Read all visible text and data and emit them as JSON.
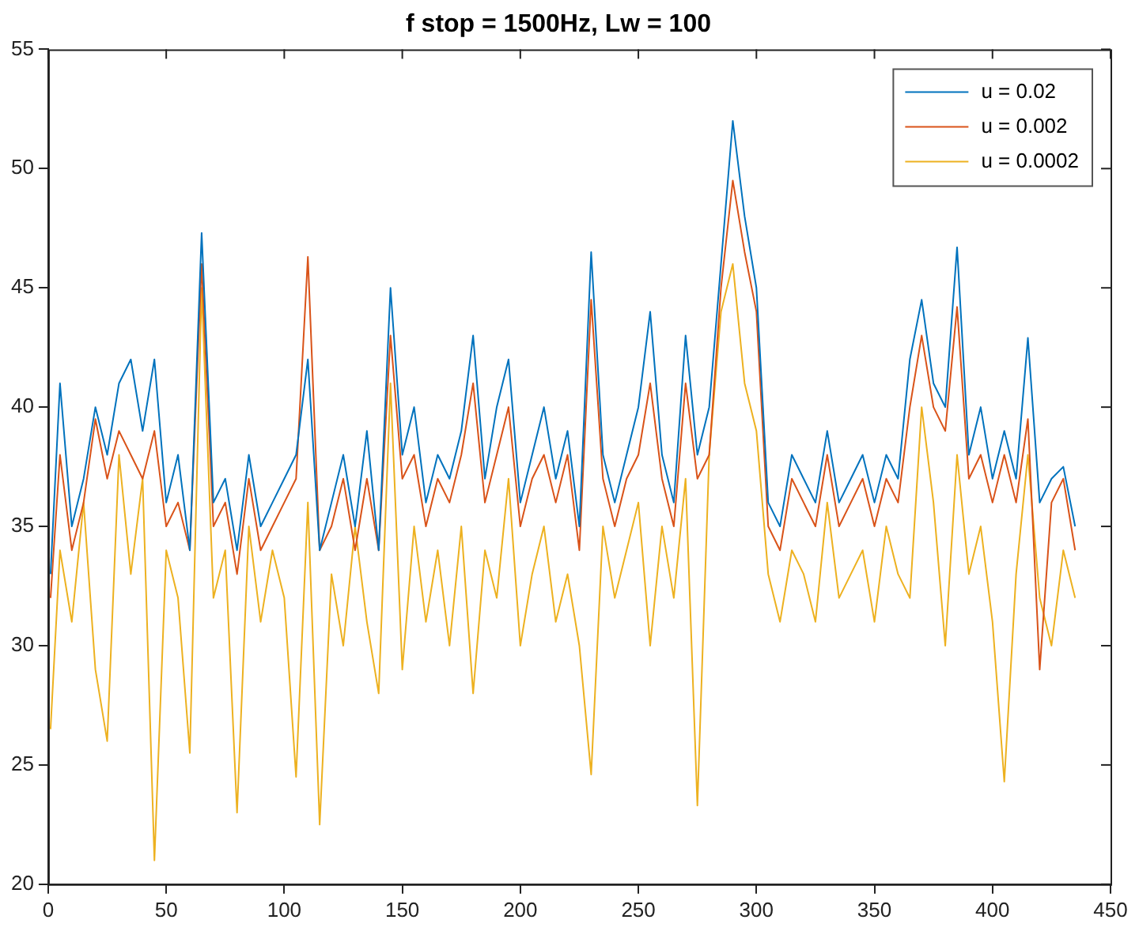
{
  "chart_data": {
    "type": "line",
    "title": "f stop = 1500Hz, Lw = 100",
    "x": [
      1,
      5,
      10,
      15,
      20,
      25,
      30,
      35,
      40,
      45,
      50,
      55,
      60,
      65,
      70,
      75,
      80,
      85,
      90,
      95,
      100,
      105,
      110,
      115,
      120,
      125,
      130,
      135,
      140,
      145,
      150,
      155,
      160,
      165,
      170,
      175,
      180,
      185,
      190,
      195,
      200,
      205,
      210,
      215,
      220,
      225,
      230,
      235,
      240,
      245,
      250,
      255,
      260,
      265,
      270,
      275,
      280,
      285,
      290,
      295,
      300,
      305,
      310,
      315,
      320,
      325,
      330,
      335,
      340,
      345,
      350,
      355,
      360,
      365,
      370,
      375,
      380,
      385,
      390,
      395,
      400,
      405,
      410,
      415,
      420,
      425,
      430,
      435
    ],
    "series": [
      {
        "name": "u = 0.02",
        "color": "#0072bd",
        "values": [
          33,
          41,
          35,
          37,
          40,
          38,
          41,
          42,
          39,
          42,
          36,
          38,
          34,
          47.3,
          36,
          37,
          34,
          38,
          35,
          36,
          37,
          38,
          42,
          34,
          36,
          38,
          35,
          39,
          34,
          45,
          38,
          40,
          36,
          38,
          37,
          39,
          43,
          37,
          40,
          42,
          36,
          38,
          40,
          37,
          39,
          35,
          46.5,
          38,
          36,
          38,
          40,
          44,
          38,
          36,
          43,
          38,
          40,
          46,
          52,
          48,
          45,
          36,
          35,
          38,
          37,
          36,
          39,
          36,
          37,
          38,
          36,
          38,
          37,
          42,
          44.5,
          41,
          40,
          46.7,
          38,
          40,
          37,
          39,
          37,
          42.9,
          36,
          37,
          37.5,
          35
        ]
      },
      {
        "name": "u = 0.002",
        "color": "#d95319",
        "values": [
          32,
          38,
          34,
          36,
          39.5,
          37,
          39,
          38,
          37,
          39,
          35,
          36,
          34,
          46,
          35,
          36,
          33,
          37,
          34,
          35,
          36,
          37,
          46.3,
          34,
          35,
          37,
          34,
          37,
          34,
          43,
          37,
          38,
          35,
          37,
          36,
          38,
          41,
          36,
          38,
          40,
          35,
          37,
          38,
          36,
          38,
          34,
          44.5,
          37,
          35,
          37,
          38,
          41,
          37,
          35,
          41,
          37,
          38,
          45,
          49.5,
          46.5,
          44,
          35,
          34,
          37,
          36,
          35,
          38,
          35,
          36,
          37,
          35,
          37,
          36,
          40,
          43,
          40,
          39,
          44.2,
          37,
          38,
          36,
          38,
          36,
          39.5,
          29,
          36,
          37,
          34
        ]
      },
      {
        "name": "u = 0.0002",
        "color": "#edb120",
        "values": [
          26.5,
          34,
          31,
          36,
          29,
          26,
          38,
          33,
          37,
          21,
          34,
          32,
          25.5,
          45,
          32,
          34,
          23,
          35,
          31,
          34,
          32,
          24.5,
          36,
          22.5,
          33,
          30,
          35,
          31,
          28,
          41,
          29,
          35,
          31,
          34,
          30,
          35,
          28,
          34,
          32,
          37,
          30,
          33,
          35,
          31,
          33,
          30,
          24.6,
          35,
          32,
          34,
          36,
          30,
          35,
          32,
          37,
          23.3,
          38,
          44,
          46,
          41,
          39,
          33,
          31,
          34,
          33,
          31,
          36,
          32,
          33,
          34,
          31,
          35,
          33,
          32,
          40,
          36,
          30,
          38,
          33,
          35,
          31,
          24.3,
          33,
          38,
          32,
          30,
          34,
          32
        ]
      }
    ],
    "xlim": [
      0,
      450
    ],
    "xticks": [
      0,
      50,
      100,
      150,
      200,
      250,
      300,
      350,
      400,
      450
    ],
    "ylim": [
      20,
      55
    ],
    "yticks": [
      20,
      25,
      30,
      35,
      40,
      45,
      50,
      55
    ],
    "grid": false,
    "legend": "top right",
    "marker": "none",
    "line_style": "solid"
  }
}
